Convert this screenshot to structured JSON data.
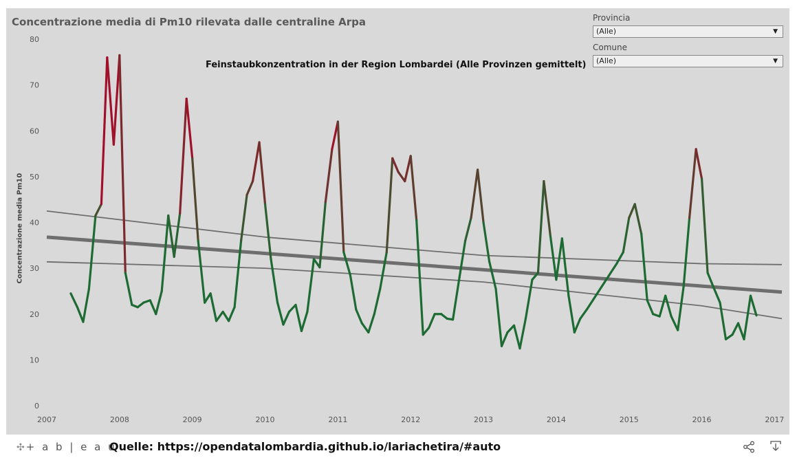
{
  "title": "Concentrazione media di Pm10 rilevata dalle centraline Arpa",
  "annotation": "Feinstaubkonzentration in der Region Lombardei (Alle Provinzen gemittelt)",
  "filters": {
    "provincia": {
      "label": "Provincia",
      "value": "(Alle)"
    },
    "comune": {
      "label": "Comune",
      "value": "(Alle)"
    }
  },
  "footer": {
    "logo_text": "+ a b | e a u",
    "source": "Quelle: https://opendatalombardia.github.io/lariachetira/#auto"
  },
  "colors": {
    "low": "#1d6b33",
    "high": "#a0102a",
    "trend": "#6e6e6e",
    "background": "#d9d9d9"
  },
  "chart_data": {
    "type": "line",
    "title": "Concentrazione media di Pm10 rilevata dalle centraline Arpa",
    "ylabel": "Concentrazione media Pm10",
    "xlabel": "",
    "xlim": [
      2007,
      2017.1
    ],
    "ylim": [
      0,
      80
    ],
    "x_ticks": [
      "2007",
      "2008",
      "2009",
      "2010",
      "2011",
      "2012",
      "2013",
      "2014",
      "2015",
      "2016",
      "2017"
    ],
    "y_ticks": [
      0,
      10,
      20,
      30,
      40,
      50,
      60,
      70,
      80
    ],
    "grid": false,
    "series": [
      {
        "x": [
          2007.33,
          2007.42,
          2007.5,
          2007.58,
          2007.67,
          2007.75,
          2007.83,
          2007.92,
          2008.0,
          2008.08,
          2008.17,
          2008.25,
          2008.33,
          2008.42,
          2008.5,
          2008.58,
          2008.67,
          2008.75,
          2008.83,
          2008.92,
          2009.0,
          2009.08,
          2009.17,
          2009.25,
          2009.33,
          2009.42,
          2009.5,
          2009.58,
          2009.67,
          2009.75,
          2009.83,
          2009.92,
          2010.0,
          2010.08,
          2010.17,
          2010.25,
          2010.33,
          2010.42,
          2010.5,
          2010.58,
          2010.67,
          2010.75,
          2010.83,
          2010.92,
          2011.0,
          2011.08,
          2011.17,
          2011.25,
          2011.33,
          2011.42,
          2011.5,
          2011.58,
          2011.67,
          2011.75,
          2011.83,
          2011.92,
          2012.0,
          2012.08,
          2012.17,
          2012.25,
          2012.33,
          2012.42,
          2012.5,
          2012.58,
          2012.67,
          2012.75,
          2012.83,
          2012.92,
          2013.0,
          2013.08,
          2013.17,
          2013.25,
          2013.33,
          2013.42,
          2013.5,
          2013.58,
          2013.67,
          2013.75,
          2013.83,
          2013.92,
          2014.0,
          2014.08,
          2014.17,
          2014.25,
          2014.33,
          2014.42,
          2014.83,
          2014.92,
          2015.0,
          2015.08,
          2015.17,
          2015.25,
          2015.33,
          2015.42,
          2015.5,
          2015.58,
          2015.67,
          2015.75,
          2015.83,
          2015.92,
          2016.0,
          2016.08,
          2016.17,
          2016.25,
          2016.33,
          2016.42,
          2016.5,
          2016.58,
          2016.67,
          2016.75
        ],
        "values": [
          24.5,
          21.5,
          18.3,
          25.5,
          41.5,
          44,
          76,
          57,
          76.5,
          29,
          22,
          21.5,
          22.5,
          23,
          20,
          25,
          41.5,
          32.5,
          42,
          67,
          54,
          36,
          22.5,
          24.5,
          18.5,
          20.5,
          18.5,
          21.5,
          36,
          46,
          49,
          57.5,
          44,
          32,
          22.5,
          17.7,
          20.5,
          22,
          16.3,
          20.5,
          32,
          30.2,
          44.5,
          56,
          62,
          33.5,
          28.5,
          21,
          18,
          16,
          20,
          25.5,
          33.5,
          54,
          51,
          49,
          54.5,
          40.5,
          15.5,
          17,
          20,
          20,
          19,
          18.8,
          28,
          36,
          41,
          51.5,
          40,
          31.5,
          25.5,
          13,
          16,
          17.5,
          12.5,
          19,
          27.5,
          29,
          49,
          37,
          27.5,
          36.5,
          24,
          16,
          19,
          21,
          31,
          33.5,
          41,
          44,
          37.5,
          23,
          20,
          19.5,
          24,
          19.5,
          16.5,
          26,
          41,
          56,
          49.5,
          29,
          25.5,
          22.5,
          14.5,
          15.5,
          18,
          14.5,
          24,
          19.7
        ]
      }
    ],
    "trend_lines": [
      {
        "label": "trend",
        "x": [
          2007,
          2017.1
        ],
        "values": [
          36.8,
          24.8
        ],
        "style": "thick"
      },
      {
        "label": "upper bound",
        "x": [
          2007,
          2010,
          2013,
          2016,
          2017.1
        ],
        "values": [
          42.5,
          36.8,
          32.8,
          31.0,
          30.8
        ],
        "style": "thin"
      },
      {
        "label": "lower bound",
        "x": [
          2007,
          2010,
          2013,
          2016,
          2017.1
        ],
        "values": [
          31.4,
          30.0,
          27.0,
          21.8,
          19.0
        ],
        "style": "thin"
      }
    ],
    "color_scale": {
      "low_value": 35,
      "high_value": 60
    }
  }
}
